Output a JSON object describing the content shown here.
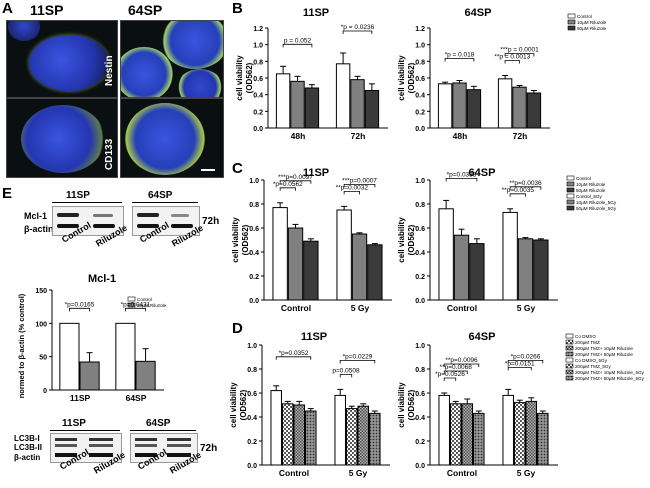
{
  "panels": {
    "A": "A",
    "B": "B",
    "C": "C",
    "D": "D",
    "E": "E"
  },
  "panelA": {
    "col_labels": [
      "11SP",
      "64SP"
    ],
    "row_labels": [
      "Nestin",
      "CD133"
    ]
  },
  "colors": {
    "bar_white": "#ffffff",
    "bar_light": "#c8c8c8",
    "bar_mid": "#808080",
    "bar_dark": "#3a3a3a",
    "photo_blue": "#2b3fcf",
    "photo_green": "#9fd06a"
  },
  "chart_data": [
    {
      "id": "B-11SP",
      "type": "bar",
      "title": "11SP",
      "ylabel": "cell viability (OD562)",
      "ylim": [
        0.0,
        1.2
      ],
      "yticks": [
        "0.0",
        "0.2",
        "0.4",
        "0.6",
        "0.8",
        "1.0",
        "1.2"
      ],
      "categories": [
        "48h",
        "72h"
      ],
      "series": [
        {
          "values": [
            0.65,
            0.77
          ],
          "errors": [
            0.09,
            0.13
          ]
        },
        {
          "values": [
            0.56,
            0.58
          ],
          "errors": [
            0.06,
            0.04
          ]
        },
        {
          "values": [
            0.48,
            0.45
          ],
          "errors": [
            0.04,
            0.08
          ]
        }
      ],
      "annotations": [
        {
          "text": "p = 0.052",
          "group": 0,
          "from": 0,
          "to": 2
        },
        {
          "text": "*p = 0.0236",
          "group": 1,
          "from": 0,
          "to": 2
        }
      ]
    },
    {
      "id": "B-64SP",
      "type": "bar",
      "title": "64SP",
      "ylabel": "cell viability (OD562)",
      "ylim": [
        0.0,
        1.2
      ],
      "yticks": [
        "0.0",
        "0.2",
        "0.4",
        "0.6",
        "0.8",
        "1.0",
        "1.2"
      ],
      "categories": [
        "48h",
        "72h"
      ],
      "legend": [
        "Control",
        "10µM Riluzole",
        "50µM Riluzole"
      ],
      "series": [
        {
          "name": "Control",
          "values": [
            0.53,
            0.59
          ],
          "errors": [
            0.02,
            0.04
          ]
        },
        {
          "name": "10µM Riluzole",
          "values": [
            0.54,
            0.49
          ],
          "errors": [
            0.03,
            0.02
          ]
        },
        {
          "name": "50µM Riluzole",
          "values": [
            0.46,
            0.42
          ],
          "errors": [
            0.04,
            0.03
          ]
        }
      ],
      "annotations": [
        {
          "text": "*p = 0.018",
          "group": 0,
          "from": 0,
          "to": 2
        },
        {
          "text": "***p = 0.0001",
          "group": 1,
          "from": 0,
          "to": 2
        },
        {
          "text": "**p = 0.0013",
          "group": 1,
          "from": 0,
          "to": 1
        }
      ]
    },
    {
      "id": "C-11SP",
      "type": "bar",
      "title": "11SP",
      "ylabel": "cell viability (OD562)",
      "ylim": [
        0.0,
        1.0
      ],
      "yticks": [
        "0.0",
        "0.2",
        "0.4",
        "0.6",
        "0.8",
        "1.0"
      ],
      "categories": [
        "Control",
        "5 Gy"
      ],
      "series": [
        {
          "values": [
            0.77,
            0.75
          ],
          "errors": [
            0.04,
            0.03
          ]
        },
        {
          "values": [
            0.6,
            0.55
          ],
          "errors": [
            0.03,
            0.01
          ]
        },
        {
          "values": [
            0.49,
            0.46
          ],
          "errors": [
            0.02,
            0.01
          ]
        }
      ],
      "annotations": [
        {
          "text": "***p=0.0097",
          "group": 0,
          "from": 0,
          "to": 2
        },
        {
          "text": "*p=0.0562",
          "group": 0,
          "from": 0,
          "to": 1
        },
        {
          "text": "***p=0.0007",
          "group": 1,
          "from": 0,
          "to": 2
        },
        {
          "text": "**p=0.0032",
          "group": 1,
          "from": 0,
          "to": 1
        }
      ]
    },
    {
      "id": "C-64SP",
      "type": "bar",
      "title": "64SP",
      "ylabel": "cell viability (OD562)",
      "ylim": [
        0.0,
        1.0
      ],
      "yticks": [
        "0.0",
        "0.2",
        "0.4",
        "0.6",
        "0.8",
        "1.0"
      ],
      "categories": [
        "Control",
        "5 Gy"
      ],
      "legend": [
        "Control",
        "10µM Riluzole",
        "50µM Riluzole",
        "Control_5Gy",
        "10µM Riluzole_5Gy",
        "50µM Riluzole_5Gy"
      ],
      "series": [
        {
          "values": [
            0.76,
            0.73
          ],
          "errors": [
            0.07,
            0.03
          ]
        },
        {
          "values": [
            0.54,
            0.51
          ],
          "errors": [
            0.05,
            0.01
          ]
        },
        {
          "values": [
            0.47,
            0.5
          ],
          "errors": [
            0.04,
            0.01
          ]
        }
      ],
      "annotations": [
        {
          "text": "*p=0.0338",
          "group": 0,
          "from": 0,
          "to": 2
        },
        {
          "text": "**p=0.0036",
          "group": 1,
          "from": 0,
          "to": 2
        },
        {
          "text": "**p=0.0035",
          "group": 1,
          "from": 0,
          "to": 1
        }
      ]
    },
    {
      "id": "D-11SP",
      "type": "bar",
      "title": "11SP",
      "ylabel": "cell viability (OD562)",
      "ylim": [
        0.0,
        1.0
      ],
      "yticks": [
        "0.0",
        "0.2",
        "0.4",
        "0.6",
        "0.8",
        "1.0"
      ],
      "categories": [
        "Control",
        "5 Gy"
      ],
      "series": [
        {
          "values": [
            0.62,
            0.58
          ],
          "errors": [
            0.04,
            0.05
          ]
        },
        {
          "values": [
            0.51,
            0.47
          ],
          "errors": [
            0.02,
            0.02
          ]
        },
        {
          "values": [
            0.5,
            0.49
          ],
          "errors": [
            0.03,
            0.02
          ]
        },
        {
          "values": [
            0.45,
            0.43
          ],
          "errors": [
            0.02,
            0.02
          ]
        }
      ],
      "annotations": [
        {
          "text": "*p=0.0352",
          "group": 0,
          "from": 0,
          "to": 3
        },
        {
          "text": "*p=0.0229",
          "group": 1,
          "from": 0,
          "to": 3
        },
        {
          "text": "p=0.0508",
          "group": 1,
          "from": 0,
          "to": 1
        }
      ]
    },
    {
      "id": "D-64SP",
      "type": "bar",
      "title": "64SP",
      "ylabel": "cell viability (OD562)",
      "ylim": [
        0.0,
        1.0
      ],
      "yticks": [
        "0.0",
        "0.2",
        "0.4",
        "0.6",
        "0.8",
        "1.0"
      ],
      "categories": [
        "Control",
        "5 Gy"
      ],
      "legend": [
        "Co DMSO",
        "200µM TMZ",
        "200µM TMZ+ 10µM Riluzole",
        "200µM TMZ+ 50µM Riluzole",
        "Co DMSO_5Gy",
        "200µM TMZ_5Gy",
        "200µM TMZ+ 10µM Riluzole_5Gy",
        "200µM TMZ+ 50µM Riluzole_5Gy"
      ],
      "series": [
        {
          "values": [
            0.58,
            0.58
          ],
          "errors": [
            0.02,
            0.05
          ]
        },
        {
          "values": [
            0.51,
            0.52
          ],
          "errors": [
            0.02,
            0.02
          ]
        },
        {
          "values": [
            0.51,
            0.53
          ],
          "errors": [
            0.04,
            0.03
          ]
        },
        {
          "values": [
            0.43,
            0.43
          ],
          "errors": [
            0.02,
            0.02
          ]
        }
      ],
      "annotations": [
        {
          "text": "**p=0.0096",
          "group": 0,
          "from": 0,
          "to": 3
        },
        {
          "text": "**p=0.0068",
          "group": 0,
          "from": 0,
          "to": 2
        },
        {
          "text": "*p=0.0526",
          "group": 0,
          "from": 0,
          "to": 1
        },
        {
          "text": "*p=0.0266",
          "group": 1,
          "from": 0,
          "to": 3
        },
        {
          "text": "*p=0.0151",
          "group": 1,
          "from": 0,
          "to": 2
        }
      ]
    },
    {
      "id": "E-Mcl1",
      "type": "bar",
      "title": "Mcl-1",
      "ylabel": "normed to β-actin (% control)",
      "ylim": [
        0,
        150
      ],
      "yticks": [
        "0",
        "50",
        "100",
        "150"
      ],
      "categories": [
        "11SP",
        "64SP"
      ],
      "legend": [
        "Control",
        "50µM Riluzole"
      ],
      "series": [
        {
          "name": "Control",
          "values": [
            100,
            100
          ],
          "errors": [
            0,
            0
          ]
        },
        {
          "name": "50µM Riluzole",
          "values": [
            42,
            43
          ],
          "errors": [
            14,
            19
          ]
        }
      ],
      "annotations": [
        {
          "text": "*p=0.0165",
          "group": 0,
          "from": 0,
          "to": 1
        },
        {
          "text": "*p=0.0431",
          "group": 1,
          "from": 0,
          "to": 1
        }
      ]
    }
  ],
  "blots": {
    "top": {
      "headers": [
        "11SP",
        "64SP"
      ],
      "rows": [
        "Mcl-1",
        "β-actin"
      ],
      "lanes": [
        "Control",
        "Riluzole",
        "Control",
        "Riluzole"
      ],
      "time": "72h"
    },
    "bottom": {
      "headers": [
        "11SP",
        "64SP"
      ],
      "rows": [
        "LC3B-I",
        "LC3B-II",
        "β-actin"
      ],
      "lanes": [
        "Control",
        "Riluzole",
        "Control",
        "Riluzole"
      ],
      "time": "72h"
    }
  }
}
